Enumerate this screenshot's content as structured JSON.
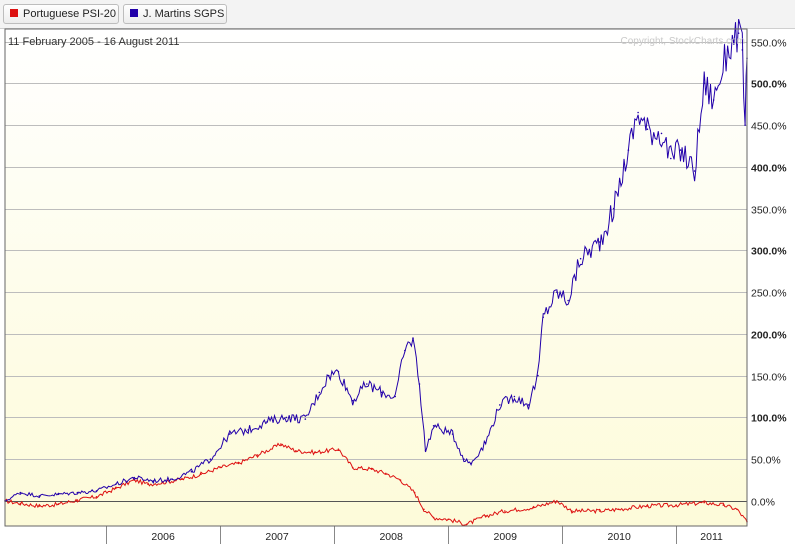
{
  "legend": [
    {
      "label": "Portuguese PSI-20",
      "color": "#dd1111"
    },
    {
      "label": "J. Martins SGPS",
      "color": "#2200aa"
    }
  ],
  "date_range": "11 February 2005 - 16 August 2011",
  "copyright": "Copyright, StockCharts.com",
  "chart_data": {
    "type": "line",
    "xlim": [
      "2005-02-11",
      "2011-08-16"
    ],
    "ylim": [
      -30,
      565
    ],
    "y_unit": "%",
    "grid": true,
    "background": "yellow-gradient",
    "y_ticks": [
      {
        "value": 0,
        "label": "0.0%",
        "bold": false
      },
      {
        "value": 50,
        "label": "50.0%",
        "bold": false
      },
      {
        "value": 100,
        "label": "100.0%",
        "bold": true
      },
      {
        "value": 150,
        "label": "150.0%",
        "bold": false
      },
      {
        "value": 200,
        "label": "200.0%",
        "bold": true
      },
      {
        "value": 250,
        "label": "250.0%",
        "bold": false
      },
      {
        "value": 300,
        "label": "300.0%",
        "bold": true
      },
      {
        "value": 350,
        "label": "350.0%",
        "bold": false
      },
      {
        "value": 400,
        "label": "400.0%",
        "bold": true
      },
      {
        "value": 450,
        "label": "450.0%",
        "bold": false
      },
      {
        "value": 500,
        "label": "500.0%",
        "bold": true
      },
      {
        "value": 550,
        "label": "550.0%",
        "bold": false
      }
    ],
    "x_ticks": [
      {
        "date": "2006-01-01",
        "label": "2006"
      },
      {
        "date": "2007-01-01",
        "label": "2007"
      },
      {
        "date": "2008-01-01",
        "label": "2008"
      },
      {
        "date": "2009-01-01",
        "label": "2009"
      },
      {
        "date": "2010-01-01",
        "label": "2010"
      },
      {
        "date": "2011-01-01",
        "label": "2011"
      }
    ],
    "series": [
      {
        "name": "Portuguese PSI-20",
        "color": "#dd1111",
        "points": [
          [
            "2005-02-11",
            0
          ],
          [
            "2005-04-01",
            -3
          ],
          [
            "2005-06-01",
            -6
          ],
          [
            "2005-08-01",
            -4
          ],
          [
            "2005-10-01",
            1
          ],
          [
            "2005-12-01",
            5
          ],
          [
            "2006-02-01",
            15
          ],
          [
            "2006-04-01",
            25
          ],
          [
            "2006-05-15",
            20
          ],
          [
            "2006-07-01",
            22
          ],
          [
            "2006-09-01",
            26
          ],
          [
            "2006-11-01",
            32
          ],
          [
            "2007-01-01",
            40
          ],
          [
            "2007-03-01",
            45
          ],
          [
            "2007-05-01",
            55
          ],
          [
            "2007-07-15",
            68
          ],
          [
            "2007-09-01",
            60
          ],
          [
            "2007-11-01",
            58
          ],
          [
            "2008-01-15",
            62
          ],
          [
            "2008-03-01",
            40
          ],
          [
            "2008-05-01",
            38
          ],
          [
            "2008-06-15",
            33
          ],
          [
            "2008-08-01",
            25
          ],
          [
            "2008-09-15",
            10
          ],
          [
            "2008-10-15",
            -10
          ],
          [
            "2008-11-15",
            -20
          ],
          [
            "2009-01-01",
            -22
          ],
          [
            "2009-03-01",
            -28
          ],
          [
            "2009-05-01",
            -18
          ],
          [
            "2009-07-01",
            -12
          ],
          [
            "2009-10-01",
            -8
          ],
          [
            "2009-12-15",
            0
          ],
          [
            "2010-02-01",
            -12
          ],
          [
            "2010-05-01",
            -12
          ],
          [
            "2010-07-01",
            -10
          ],
          [
            "2010-10-01",
            -6
          ],
          [
            "2011-01-01",
            -5
          ],
          [
            "2011-04-01",
            -2
          ],
          [
            "2011-06-01",
            -5
          ],
          [
            "2011-07-15",
            -10
          ],
          [
            "2011-08-16",
            -25
          ]
        ]
      },
      {
        "name": "J. Martins SGPS",
        "color": "#2200aa",
        "points": [
          [
            "2005-02-11",
            0
          ],
          [
            "2005-04-01",
            10
          ],
          [
            "2005-06-01",
            6
          ],
          [
            "2005-08-01",
            8
          ],
          [
            "2005-10-01",
            10
          ],
          [
            "2005-12-01",
            12
          ],
          [
            "2006-02-01",
            20
          ],
          [
            "2006-04-01",
            28
          ],
          [
            "2006-06-01",
            24
          ],
          [
            "2006-08-01",
            26
          ],
          [
            "2006-10-01",
            35
          ],
          [
            "2006-12-01",
            50
          ],
          [
            "2007-02-01",
            80
          ],
          [
            "2007-04-01",
            85
          ],
          [
            "2007-06-01",
            95
          ],
          [
            "2007-08-01",
            100
          ],
          [
            "2007-10-01",
            98
          ],
          [
            "2007-11-15",
            130
          ],
          [
            "2007-12-15",
            150
          ],
          [
            "2008-01-15",
            155
          ],
          [
            "2008-03-01",
            120
          ],
          [
            "2008-04-15",
            140
          ],
          [
            "2008-06-01",
            130
          ],
          [
            "2008-07-15",
            125
          ],
          [
            "2008-08-15",
            180
          ],
          [
            "2008-09-10",
            195
          ],
          [
            "2008-10-01",
            140
          ],
          [
            "2008-10-20",
            60
          ],
          [
            "2008-11-15",
            90
          ],
          [
            "2009-01-15",
            80
          ],
          [
            "2009-02-20",
            50
          ],
          [
            "2009-03-15",
            45
          ],
          [
            "2009-05-01",
            70
          ],
          [
            "2009-06-15",
            115
          ],
          [
            "2009-08-01",
            125
          ],
          [
            "2009-09-15",
            115
          ],
          [
            "2009-10-15",
            150
          ],
          [
            "2009-11-01",
            220
          ],
          [
            "2009-12-15",
            250
          ],
          [
            "2010-01-20",
            240
          ],
          [
            "2010-03-01",
            290
          ],
          [
            "2010-05-01",
            310
          ],
          [
            "2010-06-15",
            350
          ],
          [
            "2010-08-01",
            420
          ],
          [
            "2010-09-01",
            465
          ],
          [
            "2010-10-01",
            445
          ],
          [
            "2010-11-15",
            440
          ],
          [
            "2010-12-15",
            410
          ],
          [
            "2011-01-15",
            420
          ],
          [
            "2011-03-01",
            395
          ],
          [
            "2011-04-01",
            500
          ],
          [
            "2011-05-01",
            480
          ],
          [
            "2011-06-15",
            540
          ],
          [
            "2011-07-20",
            560
          ],
          [
            "2011-08-01",
            540
          ],
          [
            "2011-08-10",
            450
          ],
          [
            "2011-08-16",
            530
          ]
        ]
      }
    ]
  }
}
